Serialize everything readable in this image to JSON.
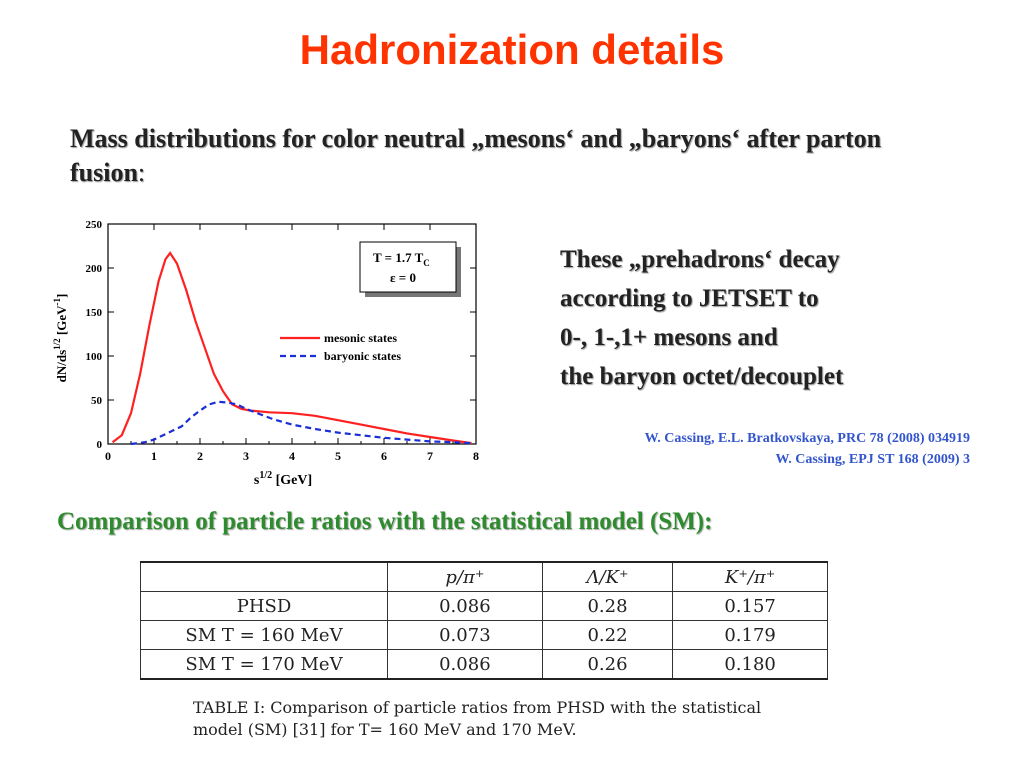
{
  "slide": {
    "title": "Hadronization details",
    "subtitle_bold": "Mass distributions for color neutral „mesons‘ and „baryons‘ after parton fusion",
    "subtitle_tail": ":",
    "side_lines": [
      "These „prehadrons‘ decay",
      "according to JETSET to",
      "0-, 1-,1+ mesons and",
      "the baryon octet/decouplet"
    ],
    "references": [
      "W. Cassing, E.L. Bratkovskaya,  PRC 78 (2008) 034919",
      "W. Cassing, EPJ  ST 168 (2009) 3"
    ],
    "comparison_heading": "Comparison of particle ratios with the statistical model (SM):"
  },
  "chart_data": {
    "type": "line",
    "xlabel": "s^{1/2} [GeV]",
    "ylabel": "dN/ds^{1/2} [GeV^{-1}]",
    "xlim": [
      0,
      8
    ],
    "ylim": [
      0,
      250
    ],
    "xticks": [
      0,
      1,
      2,
      3,
      4,
      5,
      6,
      7,
      8
    ],
    "yticks": [
      0,
      50,
      100,
      150,
      200,
      250
    ],
    "grid": false,
    "legend_position": "center-right",
    "annotation": {
      "line1": "T = 1.7 T",
      "line1_sub": "C",
      "line2": "ε = 0"
    },
    "series": [
      {
        "name": "mesonic states",
        "color": "#ff2020",
        "dash": "solid",
        "x": [
          0.1,
          0.3,
          0.5,
          0.7,
          0.9,
          1.1,
          1.25,
          1.35,
          1.5,
          1.7,
          1.9,
          2.1,
          2.3,
          2.5,
          2.7,
          2.9,
          3.1,
          3.5,
          4.0,
          4.5,
          5.0,
          5.5,
          6.0,
          6.5,
          7.0,
          7.5,
          7.9
        ],
        "y": [
          2,
          10,
          35,
          80,
          135,
          185,
          210,
          217,
          205,
          175,
          140,
          110,
          80,
          60,
          45,
          40,
          38,
          36,
          35,
          32,
          27,
          22,
          17,
          12,
          8,
          4,
          1
        ]
      },
      {
        "name": "baryonic states",
        "color": "#1a2fd6",
        "dash": "dashed",
        "x": [
          0.5,
          0.8,
          1.0,
          1.2,
          1.4,
          1.6,
          1.8,
          2.0,
          2.2,
          2.4,
          2.6,
          2.8,
          3.0,
          3.3,
          3.6,
          4.0,
          4.5,
          5.0,
          5.5,
          6.0,
          6.5,
          7.0,
          7.5,
          7.9
        ],
        "y": [
          0,
          2,
          5,
          10,
          15,
          20,
          30,
          38,
          45,
          48,
          47,
          45,
          40,
          34,
          28,
          22,
          17,
          13,
          10,
          7,
          5,
          3,
          2,
          1
        ]
      }
    ]
  },
  "table": {
    "headers": [
      "",
      "p/π⁺",
      "Λ/K⁺",
      "K⁺/π⁺"
    ],
    "rows": [
      [
        "PHSD",
        "0.086",
        "0.28",
        "0.157"
      ],
      [
        "SM T = 160 MeV",
        "0.073",
        "0.22",
        "0.179"
      ],
      [
        "SM T = 170 MeV",
        "0.086",
        "0.26",
        "0.180"
      ]
    ],
    "caption": "TABLE I: Comparison of particle ratios from PHSD with the statistical model (SM) [31] for T= 160 MeV and 170 MeV."
  }
}
